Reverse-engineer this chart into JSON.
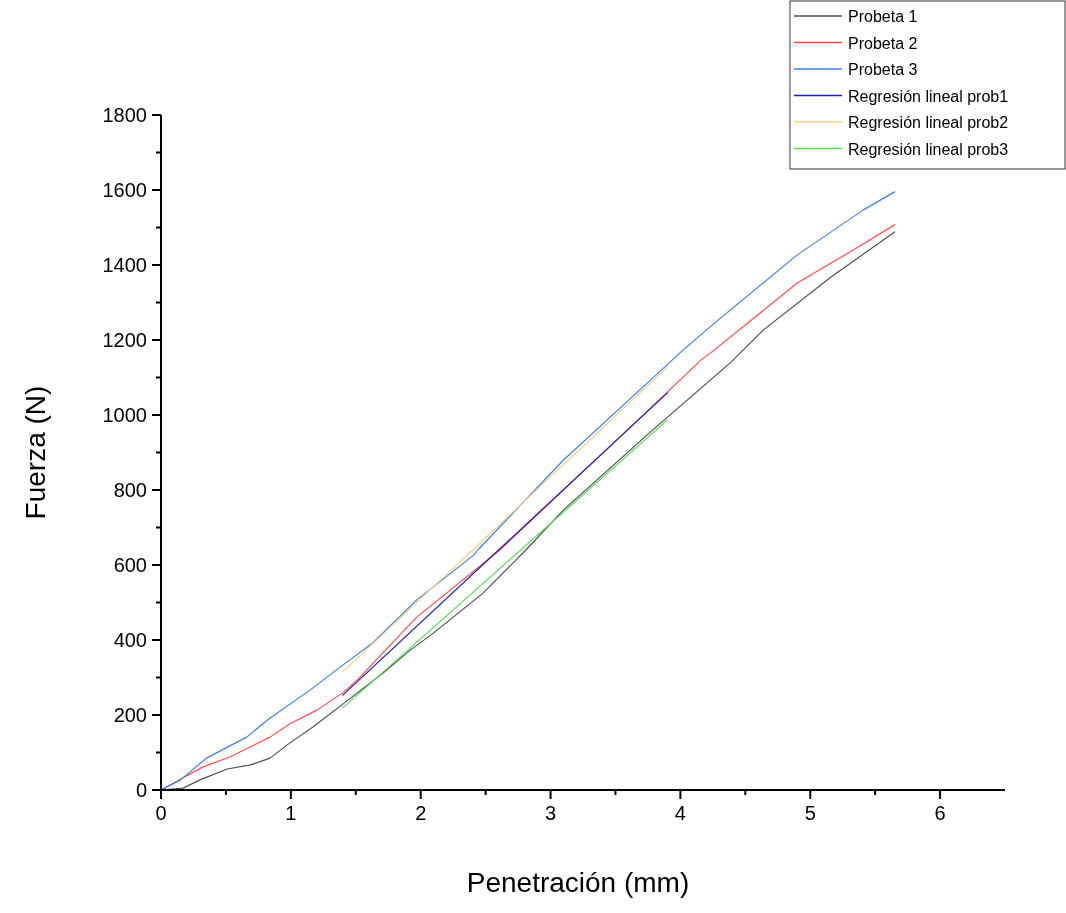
{
  "chart_data": {
    "type": "line",
    "xlabel": "Penetración (mm)",
    "ylabel": "Fuerza (N)",
    "xlim": [
      0,
      6.5
    ],
    "ylim": [
      0,
      1800
    ],
    "xticks": [
      0,
      {
        "value": 0.5,
        "label": null
      },
      1,
      {
        "value": 1.5,
        "label": null
      },
      2,
      {
        "value": 2.5,
        "label": null
      },
      3,
      {
        "value": 3.5,
        "label": null
      },
      4,
      {
        "value": 4.5,
        "label": null
      },
      5,
      {
        "value": 5.5,
        "label": null
      },
      6
    ],
    "yticks": [
      0,
      {
        "value": 100,
        "label": null
      },
      200,
      {
        "value": 300,
        "label": null
      },
      400,
      {
        "value": 500,
        "label": null
      },
      600,
      {
        "value": 700,
        "label": null
      },
      800,
      {
        "value": 900,
        "label": null
      },
      1000,
      {
        "value": 1100,
        "label": null
      },
      1200,
      {
        "value": 1300,
        "label": null
      },
      1400,
      {
        "value": 1500,
        "label": null
      },
      1600,
      {
        "value": 1700,
        "label": null
      },
      1800
    ],
    "grid": false,
    "legend": "top right",
    "marker": "none",
    "line_style": "solid",
    "series": [
      {
        "name": "Probeta 1",
        "color": "#505050",
        "x": [
          0,
          0.17,
          0.3,
          0.51,
          0.69,
          0.84,
          0.99,
          1.17,
          1.4,
          1.71,
          1.92,
          2.1,
          2.48,
          2.81,
          3.1,
          3.77,
          4.39,
          4.64,
          5.16,
          5.65
        ],
        "values": [
          0,
          5,
          27,
          56,
          67,
          85,
          125,
          168,
          229,
          312,
          373,
          419,
          525,
          640,
          747,
          955,
          1141,
          1227,
          1368,
          1488
        ]
      },
      {
        "name": "Probeta 2",
        "color": "#ff4d4d",
        "x": [
          0,
          0.32,
          0.53,
          0.84,
          0.99,
          1.2,
          1.4,
          1.51,
          1.97,
          2.61,
          3.9,
          4.16,
          4.26,
          4.9,
          5.37,
          5.65
        ],
        "values": [
          0,
          61,
          88,
          141,
          176,
          213,
          259,
          293,
          461,
          640,
          1061,
          1147,
          1173,
          1352,
          1448,
          1507
        ]
      },
      {
        "name": "Probeta 3",
        "color": "#3d82e6",
        "x": [
          0,
          0.15,
          0.35,
          0.66,
          0.84,
          1.15,
          1.4,
          1.63,
          1.97,
          2.41,
          2.44,
          3.1,
          3.77,
          4.02,
          4.29,
          4.9,
          5.41,
          5.65
        ],
        "values": [
          0,
          27,
          85,
          141,
          192,
          267,
          333,
          392,
          507,
          627,
          640,
          880,
          1093,
          1173,
          1253,
          1427,
          1547,
          1595
        ]
      },
      {
        "name": "Regresión lineal prob1",
        "color": "#2020b0",
        "x": [
          1.4,
          3.9
        ],
        "values": [
          253,
          1059
        ]
      },
      {
        "name": "Regresión lineal prob2",
        "color": "#f5d08a",
        "x": [
          1.4,
          3.9
        ],
        "values": [
          315,
          1128
        ]
      },
      {
        "name": "Regresión lineal prob3",
        "color": "#55dd55",
        "x": [
          1.4,
          3.9
        ],
        "values": [
          219,
          987
        ]
      }
    ]
  }
}
